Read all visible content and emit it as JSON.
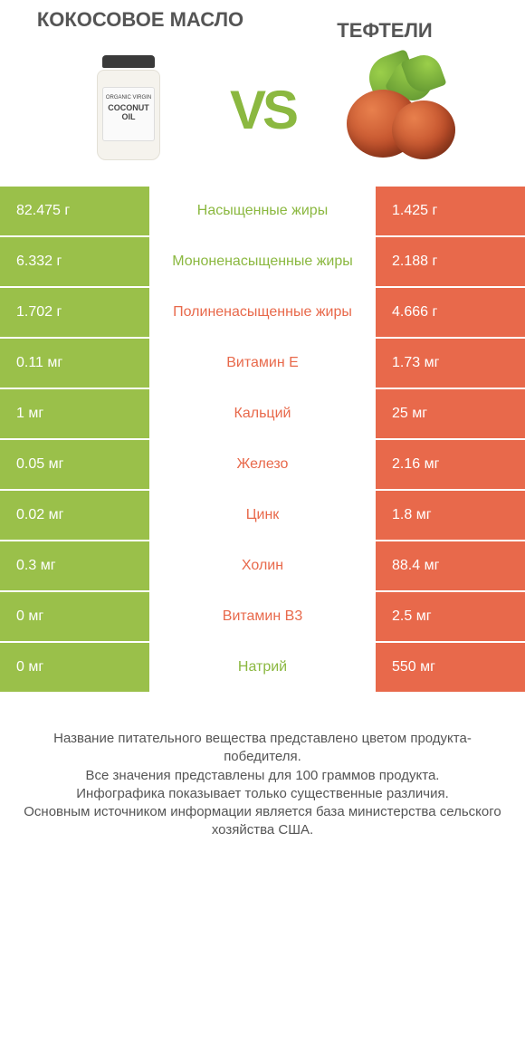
{
  "colors": {
    "green": "#9ac04a",
    "orange": "#e8694b",
    "green_text": "#8bb840",
    "orange_text": "#e8694b",
    "white": "#ffffff"
  },
  "left_title": "КОКОСОВОЕ МАСЛО",
  "right_title": "ТЕФТЕЛИ",
  "vs": "VS",
  "jar_text_small": "ORGANIC VIRGIN",
  "jar_text_big": "COCONUT OIL",
  "rows": [
    {
      "left": "82.475 г",
      "mid": "Насыщенные жиры",
      "right": "1.425 г",
      "winner": "left"
    },
    {
      "left": "6.332 г",
      "mid": "Мононенасыщенные жиры",
      "right": "2.188 г",
      "winner": "left"
    },
    {
      "left": "1.702 г",
      "mid": "Полиненасыщенные жиры",
      "right": "4.666 г",
      "winner": "right"
    },
    {
      "left": "0.11 мг",
      "mid": "Витамин E",
      "right": "1.73 мг",
      "winner": "right"
    },
    {
      "left": "1 мг",
      "mid": "Кальций",
      "right": "25 мг",
      "winner": "right"
    },
    {
      "left": "0.05 мг",
      "mid": "Железо",
      "right": "2.16 мг",
      "winner": "right"
    },
    {
      "left": "0.02 мг",
      "mid": "Цинк",
      "right": "1.8 мг",
      "winner": "right"
    },
    {
      "left": "0.3 мг",
      "mid": "Холин",
      "right": "88.4 мг",
      "winner": "right"
    },
    {
      "left": "0 мг",
      "mid": "Витамин B3",
      "right": "2.5 мг",
      "winner": "right"
    },
    {
      "left": "0 мг",
      "mid": "Натрий",
      "right": "550 мг",
      "winner": "left"
    }
  ],
  "footer": [
    "Название питательного вещества представлено цветом продукта-победителя.",
    "Все значения представлены для 100 граммов продукта.",
    "Инфографика показывает только существенные различия.",
    "Основным источником информации является база министерства сельского хозяйства США."
  ]
}
